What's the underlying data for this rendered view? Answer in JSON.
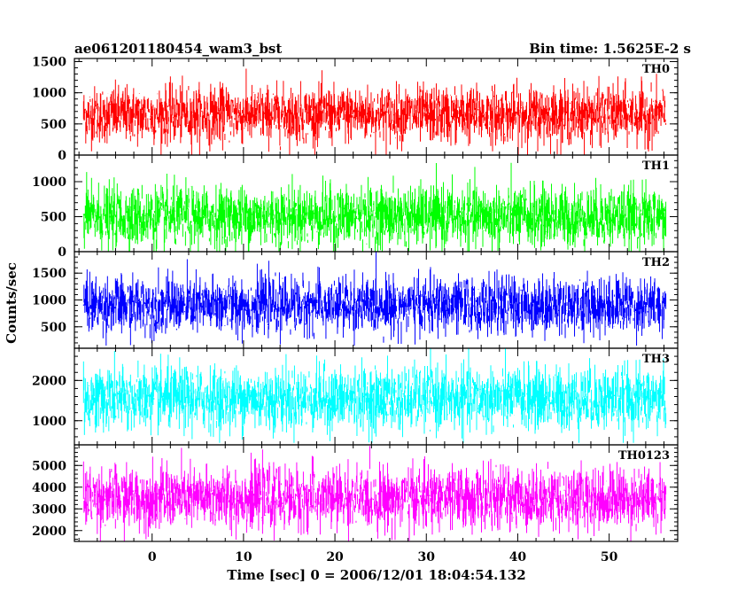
{
  "chart_data": {
    "type": "line",
    "title": "ae061201180454_wam3_bst",
    "subtitle": "Bin time: 1.5625E-2 s",
    "xlabel": "Time [sec] 0 = 2006/12/01 18:04:54.132",
    "ylabel": "Counts/sec",
    "xlim": [
      -8.5,
      57.5
    ],
    "x_ticks": [
      0,
      10,
      20,
      30,
      40,
      50
    ],
    "x_range": [
      -7.5,
      56.2
    ],
    "grid": false,
    "panels": [
      {
        "name": "TH0",
        "color": "#ff0000",
        "ylim": [
          0,
          1550
        ],
        "y_ticks": [
          0,
          500,
          1000,
          1500
        ],
        "mean": 650,
        "sigma": 225,
        "min": 0,
        "max": 1550
      },
      {
        "name": "TH1",
        "color": "#00ff00",
        "ylim": [
          0,
          1380
        ],
        "y_ticks": [
          0,
          500,
          1000
        ],
        "mean": 500,
        "sigma": 215,
        "min": 0,
        "max": 1380
      },
      {
        "name": "TH2",
        "color": "#0000ff",
        "ylim": [
          100,
          1900
        ],
        "y_ticks": [
          500,
          1000,
          1500
        ],
        "mean": 900,
        "sigma": 260,
        "min": 150,
        "max": 1900
      },
      {
        "name": "TH3",
        "color": "#00ffff",
        "ylim": [
          400,
          2800
        ],
        "y_ticks": [
          1000,
          2000
        ],
        "mean": 1550,
        "sigma": 390,
        "min": 450,
        "max": 2800
      },
      {
        "name": "TH0123",
        "color": "#ff00ff",
        "ylim": [
          1500,
          5950
        ],
        "y_ticks": [
          2000,
          3000,
          4000,
          5000
        ],
        "mean": 3500,
        "sigma": 700,
        "min": 1500,
        "max": 5900
      }
    ]
  }
}
